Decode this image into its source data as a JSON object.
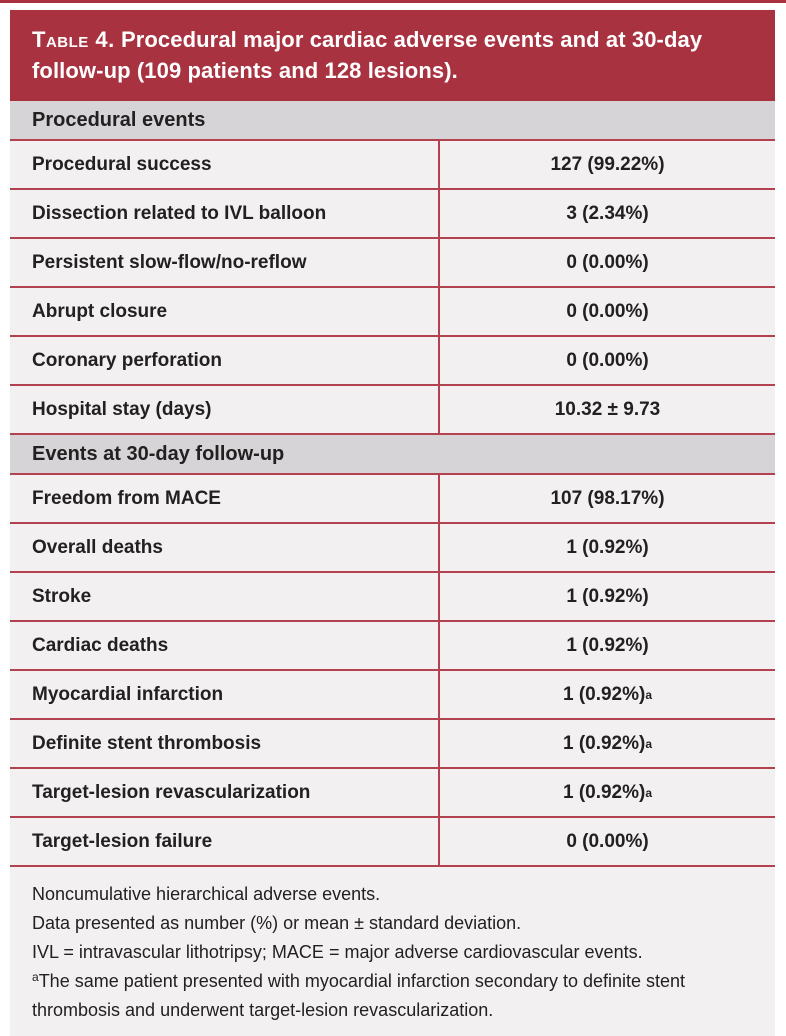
{
  "colors": {
    "banner_red": "#a93241",
    "rule_red": "#b24250",
    "row_background": "#f3f0f1",
    "section_background": "#d6d4d6",
    "title_text": "#ffffff",
    "body_text": "#232021"
  },
  "header": {
    "table_label": "Table 4.",
    "title": " Procedural major cardiac adverse events and at 30-day follow-up (109 patients and 128 lesions)."
  },
  "sections": [
    {
      "title": "Procedural events",
      "rows": [
        {
          "label": "Procedural success",
          "value": "127 (99.22%)"
        },
        {
          "label": "Dissection related to IVL balloon",
          "value": "3 (2.34%)"
        },
        {
          "label": "Persistent slow-flow/no-reflow",
          "value": "0 (0.00%)"
        },
        {
          "label": "Abrupt closure",
          "value": "0 (0.00%)"
        },
        {
          "label": "Coronary perforation",
          "value": "0 (0.00%)"
        },
        {
          "label": "Hospital stay (days)",
          "value": "10.32 ± 9.73"
        }
      ]
    },
    {
      "title": "Events at 30-day follow-up",
      "rows": [
        {
          "label": "Freedom from MACE",
          "value": "107 (98.17%)"
        },
        {
          "label": "Overall deaths",
          "value": "1 (0.92%)"
        },
        {
          "label": "Stroke",
          "value": "1 (0.92%)"
        },
        {
          "label": "Cardiac deaths",
          "value": "1 (0.92%)"
        },
        {
          "label": "Myocardial infarction",
          "value": "1 (0.92%)",
          "sup": "a"
        },
        {
          "label": "Definite stent thrombosis",
          "value": "1 (0.92%)",
          "sup": "a"
        },
        {
          "label": "Target-lesion revascularization",
          "value": "1 (0.92%)",
          "sup": "a"
        },
        {
          "label": "Target-lesion failure",
          "value": "0 (0.00%)"
        }
      ]
    }
  ],
  "footnotes": [
    {
      "text": "Noncumulative hierarchical adverse events."
    },
    {
      "text": "Data presented as number (%) or mean ± standard deviation."
    },
    {
      "text": "IVL = intravascular lithotripsy; MACE = major adverse cardiovascular events."
    },
    {
      "sup": "a",
      "text": "The same patient presented with myocardial infarction secondary to definite stent thrombosis and underwent target-lesion revascularization."
    }
  ]
}
